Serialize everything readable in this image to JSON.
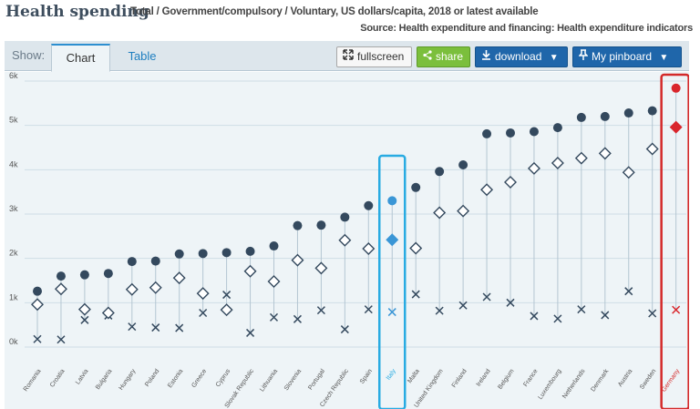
{
  "header": {
    "title": "Health spending",
    "subtitle": "Total / Government/compulsory / Voluntary, US dollars/capita, 2018 or latest available",
    "source": "Source: Health expenditure and financing: Health expenditure indicators"
  },
  "toolbar": {
    "show_label": "Show:",
    "tabs": [
      {
        "label": "Chart",
        "active": true
      },
      {
        "label": "Table",
        "active": false
      }
    ],
    "fullscreen_label": "fullscreen",
    "share_label": "share",
    "download_label": "download",
    "pinboard_label": "My pinboard",
    "icons": [
      "expand-icon",
      "share-icon",
      "download-icon",
      "pin-icon",
      "caret-down-icon"
    ]
  },
  "colors": {
    "total_marker": "#34495e",
    "government_marker": "#34495e",
    "voluntary_marker": "#34495e",
    "italy_highlight": "#3a96d6",
    "germany_highlight": "#d9262c",
    "italy_box": "#29abe2",
    "germany_box": "#d42a2a",
    "plot_background": "#eef4f7",
    "gridline": "#cfdde6"
  },
  "chart_data": {
    "type": "scatter",
    "title": "",
    "xlabel": "",
    "ylabel": "",
    "ylim": [
      0,
      6000
    ],
    "yticks": [
      {
        "value": 0,
        "label": "0k"
      },
      {
        "value": 1000,
        "label": "1k"
      },
      {
        "value": 2000,
        "label": "2k"
      },
      {
        "value": 3000,
        "label": "3k"
      },
      {
        "value": 4000,
        "label": "4k"
      },
      {
        "value": 5000,
        "label": "5k"
      },
      {
        "value": 6000,
        "label": "6k"
      }
    ],
    "grid": true,
    "categories": [
      "Romania",
      "Croatia",
      "Latvia",
      "Bulgaria",
      "Hungary",
      "Poland",
      "Estonia",
      "Greece",
      "Cyprus",
      "Slovak Republic",
      "Lithuania",
      "Slovenia",
      "Portugal",
      "Czech Republic",
      "Spain",
      "Italy",
      "Malta",
      "United Kingdom",
      "Finland",
      "Ireland",
      "Belgium",
      "France",
      "Luxembourg",
      "Netherlands",
      "Denmark",
      "Austria",
      "Sweden",
      "Germany"
    ],
    "highlighted": {
      "Italy": "italy_highlight",
      "Germany": "germany_highlight"
    },
    "series": [
      {
        "name": "Total",
        "marker": "circle",
        "values": [
          1260,
          1600,
          1630,
          1660,
          1930,
          1940,
          2100,
          2110,
          2130,
          2160,
          2280,
          2740,
          2750,
          2930,
          3190,
          3300,
          3600,
          3960,
          4110,
          4810,
          4830,
          4860,
          4950,
          5180,
          5200,
          5280,
          5330,
          5840
        ]
      },
      {
        "name": "Government/compulsory",
        "marker": "diamond",
        "values": [
          960,
          1310,
          850,
          770,
          1300,
          1340,
          1560,
          1210,
          840,
          1710,
          1480,
          1960,
          1780,
          2410,
          2220,
          2420,
          2230,
          3030,
          3070,
          3550,
          3720,
          4030,
          4150,
          4260,
          4370,
          3940,
          4470,
          4960
        ]
      },
      {
        "name": "Voluntary",
        "marker": "cross",
        "values": [
          180,
          170,
          610,
          710,
          460,
          440,
          430,
          770,
          1180,
          320,
          670,
          630,
          830,
          400,
          850,
          790,
          1190,
          820,
          940,
          1130,
          1000,
          700,
          640,
          850,
          720,
          1260,
          760,
          840
        ]
      }
    ]
  }
}
